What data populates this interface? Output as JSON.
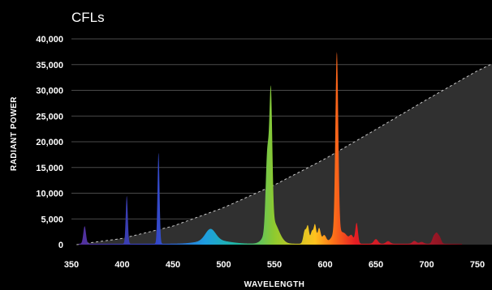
{
  "chart_data": {
    "type": "area",
    "title": "CFLs",
    "xlabel": "WAVELENGTH",
    "ylabel": "RADIANT POWER",
    "xlim": [
      350,
      750
    ],
    "ylim": [
      0,
      40000
    ],
    "x_ticks": [
      350,
      400,
      450,
      500,
      550,
      600,
      650,
      700,
      750
    ],
    "y_ticks": [
      0,
      5000,
      10000,
      15000,
      20000,
      25000,
      30000,
      35000,
      40000
    ],
    "y_tick_labels": [
      "0",
      "5,000",
      "10,000",
      "15,000",
      "20,000",
      "25,000",
      "30,000",
      "35,000",
      "40,000"
    ],
    "grid": true,
    "reference_curve": {
      "style": "dashed",
      "x": [
        355,
        400,
        450,
        500,
        550,
        600,
        650,
        700,
        750
      ],
      "y": [
        0,
        1200,
        3600,
        7200,
        11600,
        16700,
        22400,
        28200,
        33800
      ]
    },
    "peaks": [
      {
        "center": 363,
        "height": 3400,
        "width": 1.3
      },
      {
        "center": 404.5,
        "height": 9300,
        "width": 1.0
      },
      {
        "center": 435.8,
        "height": 17700,
        "width": 1.0
      },
      {
        "center": 487,
        "height": 2200,
        "width": 5
      },
      {
        "center": 490,
        "height": 700,
        "width": 14
      },
      {
        "center": 543,
        "height": 14500,
        "width": 1.6
      },
      {
        "center": 546.5,
        "height": 25000,
        "width": 1.4
      },
      {
        "center": 548,
        "height": 4500,
        "width": 6
      },
      {
        "center": 580,
        "height": 2600,
        "width": 1.5
      },
      {
        "center": 583,
        "height": 3200,
        "width": 1.2
      },
      {
        "center": 587,
        "height": 2400,
        "width": 1.4
      },
      {
        "center": 590,
        "height": 3500,
        "width": 1.2
      },
      {
        "center": 594,
        "height": 3000,
        "width": 1.5
      },
      {
        "center": 599,
        "height": 1600,
        "width": 2
      },
      {
        "center": 611.5,
        "height": 34800,
        "width": 1.4
      },
      {
        "center": 612,
        "height": 2500,
        "width": 5
      },
      {
        "center": 620,
        "height": 1200,
        "width": 3
      },
      {
        "center": 626,
        "height": 1500,
        "width": 2
      },
      {
        "center": 631,
        "height": 4000,
        "width": 1.3
      },
      {
        "center": 650,
        "height": 900,
        "width": 2
      },
      {
        "center": 662,
        "height": 500,
        "width": 2
      },
      {
        "center": 688,
        "height": 550,
        "width": 2
      },
      {
        "center": 695,
        "height": 350,
        "width": 2
      },
      {
        "center": 707,
        "height": 1300,
        "width": 1.6
      },
      {
        "center": 710,
        "height": 1800,
        "width": 1.6
      },
      {
        "center": 713,
        "height": 1100,
        "width": 1.5
      }
    ],
    "colors": {
      "background": "#000000",
      "grid": "#4a4a4a",
      "reference_fill": "#303030",
      "reference_line": "#c8c8c8",
      "text": "#ffffff"
    }
  }
}
